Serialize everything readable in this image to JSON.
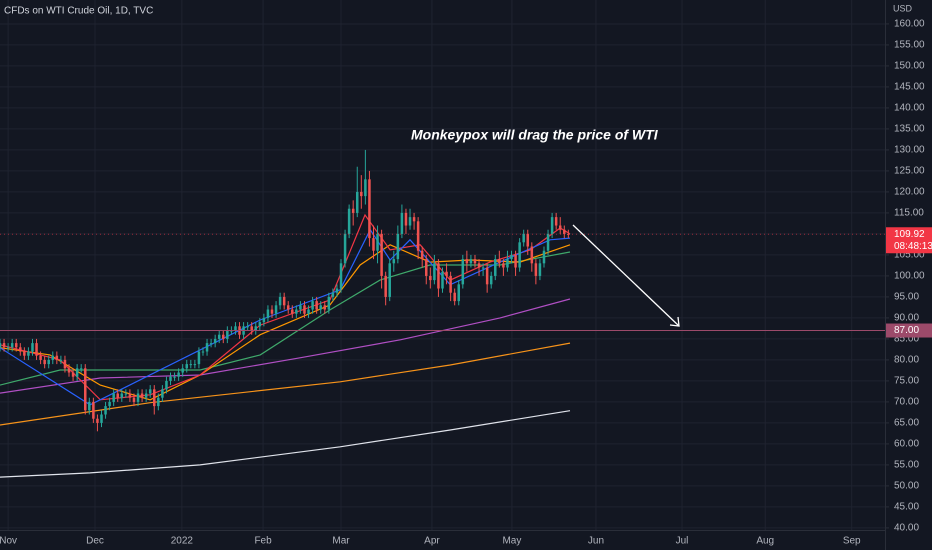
{
  "chart_data": {
    "type": "candlestick",
    "title": "CFDs on WTI Crude Oil, 1D, TVC",
    "currency": "USD",
    "annotation": "Monkeypox will drag the price of WTI",
    "grid": true,
    "up_color": "#26a69a",
    "down_color": "#ef5350",
    "xlim": [
      -2,
      216
    ],
    "xticks": [
      {
        "value": 0,
        "label": "Nov"
      },
      {
        "value": 21.4,
        "label": "Dec"
      },
      {
        "value": 42.8,
        "label": "2022"
      },
      {
        "value": 62.8,
        "label": "Feb"
      },
      {
        "value": 82,
        "label": "Mar"
      },
      {
        "value": 104.4,
        "label": "Apr"
      },
      {
        "value": 124.1,
        "label": "May"
      },
      {
        "value": 144.8,
        "label": "Jun"
      },
      {
        "value": 166,
        "label": "Jul"
      },
      {
        "value": 186.5,
        "label": "Aug"
      },
      {
        "value": 207.8,
        "label": "Sep"
      }
    ],
    "ylim": [
      39.5,
      165.7
    ],
    "yticks": [
      {
        "value": 40,
        "label": "40.00"
      },
      {
        "value": 45,
        "label": "45.00"
      },
      {
        "value": 50,
        "label": "50.00"
      },
      {
        "value": 55,
        "label": "55.00"
      },
      {
        "value": 60,
        "label": "60.00"
      },
      {
        "value": 65,
        "label": "65.00"
      },
      {
        "value": 70,
        "label": "70.00"
      },
      {
        "value": 75,
        "label": "75.00"
      },
      {
        "value": 80,
        "label": "80.00"
      },
      {
        "value": 85,
        "label": "85.00"
      },
      {
        "value": 90,
        "label": "90.00"
      },
      {
        "value": 95,
        "label": "95.00"
      },
      {
        "value": 100,
        "label": "100.00"
      },
      {
        "value": 105,
        "label": "105.00"
      },
      {
        "value": 110,
        "label": "110.00"
      },
      {
        "value": 115,
        "label": "115.00"
      },
      {
        "value": 120,
        "label": "120.00"
      },
      {
        "value": 125,
        "label": "125.00"
      },
      {
        "value": 130,
        "label": "130.00"
      },
      {
        "value": 135,
        "label": "135.00"
      },
      {
        "value": 140,
        "label": "140.00"
      },
      {
        "value": 145,
        "label": "145.00"
      },
      {
        "value": 150,
        "label": "150.00"
      },
      {
        "value": 155,
        "label": "155.00"
      },
      {
        "value": 160,
        "label": "160.00"
      }
    ],
    "hline": {
      "value": 87,
      "label": "87.00",
      "color": "#9c4a6a"
    },
    "last_price": {
      "value": 109.92,
      "label": "109.92",
      "countdown": "08:48:13",
      "color": "#f23645"
    },
    "candles": {
      "x": [
        -2,
        -1,
        0,
        1,
        2,
        3,
        4,
        5,
        6,
        7,
        8,
        9,
        10,
        11,
        12,
        13,
        14,
        15,
        16,
        17,
        18,
        19,
        20,
        21,
        22,
        23,
        24,
        25,
        26,
        27,
        28,
        29,
        30,
        31,
        32,
        33,
        34,
        35,
        36,
        37,
        38,
        39,
        40,
        41,
        42,
        43,
        44,
        45,
        46,
        47,
        48,
        49,
        50,
        51,
        52,
        53,
        54,
        55,
        56,
        57,
        58,
        59,
        60,
        61,
        62,
        63,
        64,
        65,
        66,
        67,
        68,
        69,
        70,
        71,
        72,
        73,
        74,
        75,
        76,
        77,
        78,
        79,
        80,
        81,
        82,
        83,
        84,
        85,
        86,
        87,
        88,
        89,
        90,
        91,
        92,
        93,
        94,
        95,
        96,
        97,
        98,
        99,
        100,
        101,
        102,
        103,
        104,
        105,
        106,
        107,
        108,
        109,
        110,
        111,
        112,
        113,
        114,
        115,
        116,
        117,
        118,
        119,
        120,
        121,
        122,
        123,
        124,
        125,
        126,
        127,
        128,
        129,
        130,
        131,
        132,
        133,
        134,
        135,
        136,
        137,
        138
      ],
      "open": [
        83,
        84,
        83,
        83,
        84,
        83,
        82,
        81,
        82,
        84,
        81,
        80,
        79,
        80,
        81,
        80,
        80,
        78,
        77,
        76,
        78,
        78,
        68,
        70,
        66,
        65,
        67,
        69,
        70,
        72,
        71,
        72,
        72,
        71,
        70,
        72,
        71,
        72,
        73,
        69,
        71,
        73,
        75,
        76,
        76,
        77,
        78,
        79,
        79,
        79,
        82,
        82,
        84,
        84,
        85,
        86,
        85,
        87,
        87,
        88,
        86,
        88,
        88,
        87,
        88,
        89,
        90,
        92,
        91,
        93,
        95,
        93,
        92,
        91,
        92,
        93,
        91,
        92,
        94,
        92,
        93,
        92,
        95,
        96,
        97,
        103,
        110,
        116,
        115,
        120,
        119,
        123,
        109,
        106,
        110,
        100,
        95,
        103,
        104,
        110,
        115,
        112,
        114,
        113,
        106,
        104,
        100,
        99,
        103,
        97,
        101,
        100,
        96,
        94,
        98,
        104,
        103,
        104,
        103,
        102,
        102,
        98,
        100,
        104,
        103,
        102,
        104,
        105,
        102,
        108,
        110,
        107,
        103,
        100,
        103,
        106,
        110,
        114,
        112,
        111,
        110
      ],
      "high": [
        85,
        85,
        84,
        85,
        85,
        84,
        83,
        83,
        85,
        85,
        82,
        81,
        81,
        82,
        82,
        81,
        81,
        79,
        78,
        79,
        79,
        79,
        71,
        71,
        67,
        68,
        70,
        71,
        73,
        73,
        73,
        73,
        73,
        72,
        73,
        73,
        73,
        74,
        74,
        72,
        74,
        76,
        77,
        77,
        78,
        79,
        80,
        80,
        80,
        83,
        83,
        85,
        85,
        86,
        87,
        87,
        88,
        88,
        89,
        89,
        89,
        89,
        89,
        89,
        90,
        91,
        93,
        93,
        94,
        96,
        96,
        94,
        93,
        93,
        94,
        94,
        93,
        95,
        95,
        94,
        94,
        96,
        97,
        98,
        104,
        111,
        117,
        118,
        126,
        124,
        130,
        125,
        112,
        112,
        111,
        101,
        104,
        106,
        112,
        117,
        116,
        116,
        115,
        114,
        107,
        105,
        102,
        105,
        104,
        102,
        103,
        101,
        97,
        99,
        105,
        106,
        105,
        105,
        104,
        103,
        103,
        101,
        105,
        106,
        104,
        106,
        106,
        106,
        109,
        111,
        111,
        108,
        104,
        104,
        107,
        111,
        115,
        115,
        114,
        112,
        111
      ],
      "low": [
        82,
        82,
        82,
        82,
        82,
        81,
        80,
        80,
        81,
        80,
        79,
        78,
        78,
        79,
        79,
        79,
        77,
        76,
        75,
        75,
        77,
        67,
        67,
        65,
        63,
        64,
        66,
        68,
        69,
        70,
        70,
        71,
        70,
        69,
        69,
        70,
        70,
        71,
        67,
        68,
        70,
        72,
        74,
        75,
        75,
        76,
        77,
        78,
        78,
        78,
        81,
        81,
        83,
        83,
        84,
        84,
        84,
        86,
        86,
        85,
        85,
        87,
        86,
        86,
        87,
        88,
        89,
        90,
        90,
        92,
        92,
        91,
        90,
        90,
        91,
        90,
        90,
        91,
        91,
        91,
        91,
        91,
        94,
        95,
        96,
        102,
        109,
        112,
        114,
        116,
        117,
        107,
        104,
        103,
        97,
        93,
        94,
        101,
        103,
        109,
        110,
        111,
        111,
        104,
        102,
        98,
        97,
        98,
        95,
        96,
        98,
        94,
        93,
        93,
        97,
        101,
        102,
        102,
        100,
        100,
        96,
        97,
        99,
        102,
        100,
        101,
        103,
        100,
        101,
        107,
        105,
        101,
        98,
        99,
        102,
        105,
        109,
        111,
        110,
        109,
        109
      ],
      "close": [
        84,
        83,
        83,
        84,
        83,
        82,
        81,
        82,
        84,
        81,
        80,
        79,
        80,
        81,
        80,
        80,
        78,
        77,
        76,
        78,
        78,
        68,
        70,
        66,
        65,
        67,
        69,
        70,
        72,
        71,
        72,
        72,
        71,
        70,
        72,
        71,
        72,
        73,
        69,
        71,
        73,
        75,
        76,
        76,
        77,
        78,
        79,
        79,
        79,
        82,
        82,
        84,
        84,
        85,
        86,
        85,
        87,
        87,
        88,
        86,
        88,
        88,
        87,
        88,
        89,
        90,
        92,
        91,
        93,
        95,
        93,
        92,
        91,
        92,
        93,
        91,
        92,
        94,
        92,
        93,
        92,
        95,
        96,
        97,
        103,
        110,
        116,
        115,
        120,
        119,
        123,
        109,
        106,
        110,
        100,
        95,
        103,
        104,
        110,
        115,
        112,
        114,
        113,
        106,
        104,
        100,
        99,
        103,
        97,
        101,
        100,
        96,
        94,
        98,
        104,
        103,
        104,
        103,
        102,
        102,
        98,
        100,
        104,
        103,
        102,
        104,
        105,
        102,
        108,
        110,
        107,
        103,
        100,
        103,
        106,
        110,
        114,
        112,
        111,
        110,
        109.92
      ]
    },
    "lines": [
      {
        "color": "#e0e3eb",
        "x": [
          -2,
          20.2,
          47.3,
          81.8,
          108.9,
          138.4
        ],
        "values": [
          52.1,
          53.1,
          55,
          59.3,
          63.3,
          67.9
        ]
      },
      {
        "color": "#f7931a",
        "x": [
          -2,
          35,
          81.8,
          108.9,
          138.4
        ],
        "values": [
          64.5,
          69.8,
          74.8,
          78.8,
          84
        ]
      },
      {
        "color": "#b04fc4",
        "x": [
          -2,
          22.7,
          47.3,
          71.9,
          96.6,
          121.2,
          138.4
        ],
        "values": [
          72.1,
          75.7,
          76.4,
          80.5,
          84.8,
          90,
          94.5
        ]
      },
      {
        "color": "#3fa96b",
        "x": [
          -2,
          12.8,
          27.6,
          47.3,
          62.1,
          79.3,
          91.6,
          103.9,
          121.2,
          138.4
        ],
        "values": [
          74,
          77.6,
          77.6,
          77.6,
          81.2,
          91.9,
          99,
          102.6,
          102.6,
          105.7
        ]
      },
      {
        "color": "#ff9800",
        "x": [
          -2,
          10.3,
          22.7,
          35,
          47.3,
          62.1,
          79.3,
          86.7,
          94.1,
          103.9,
          113.8,
          126.1,
          138.4
        ],
        "values": [
          82.9,
          81.2,
          74,
          70.5,
          76.4,
          86,
          93.1,
          102.6,
          107.4,
          103.3,
          103.8,
          103.3,
          107.4
        ]
      },
      {
        "color": "#f23645",
        "x": [
          -2,
          12.8,
          22.7,
          35,
          47.3,
          62.1,
          79.3,
          87.9,
          94.1,
          101.5,
          108.9,
          118.7,
          128.6,
          136,
          138.4
        ],
        "values": [
          83.6,
          80,
          70.5,
          71.7,
          76.4,
          88.3,
          94.3,
          114.5,
          106.2,
          107.4,
          99,
          103.3,
          106.2,
          111.4,
          110
        ]
      },
      {
        "color": "#2962ff",
        "x": [
          -2,
          20.2,
          62.1,
          81.8,
          89.2,
          94.1,
          99,
          108.9,
          121.2,
          133.5,
          138.4
        ],
        "values": [
          82.9,
          69.3,
          89.5,
          96.7,
          111,
          103.8,
          108.6,
          97.9,
          103.3,
          108.6,
          109
        ]
      }
    ]
  }
}
